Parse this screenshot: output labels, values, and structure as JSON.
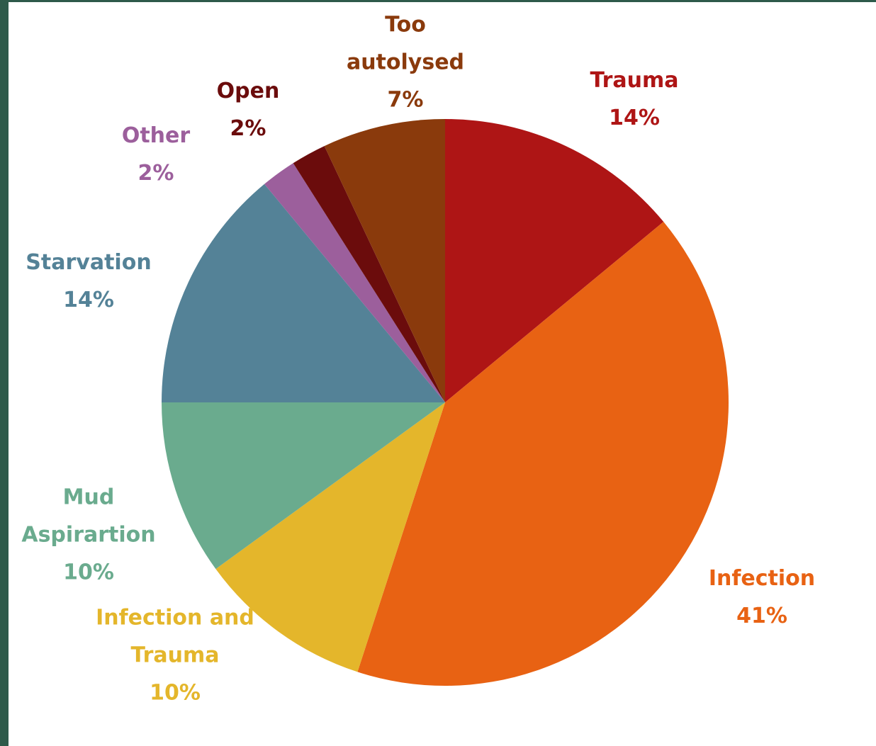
{
  "chart_data": {
    "type": "pie",
    "categories": [
      "Trauma",
      "Infection",
      "Infection and Trauma",
      "Mud Aspirartion",
      "Starvation",
      "Other",
      "Open",
      "Too autolysed"
    ],
    "values": [
      14,
      41,
      10,
      10,
      14,
      2,
      2,
      7
    ],
    "value_labels": [
      "14%",
      "41%",
      "10%",
      "10%",
      "14%",
      "2%",
      "2%",
      "7%"
    ],
    "colors": [
      "#ae1515",
      "#e86213",
      "#e4b62b",
      "#6aab8e",
      "#548297",
      "#9c5f9c",
      "#6b0c0c",
      "#8a3a0c"
    ]
  }
}
